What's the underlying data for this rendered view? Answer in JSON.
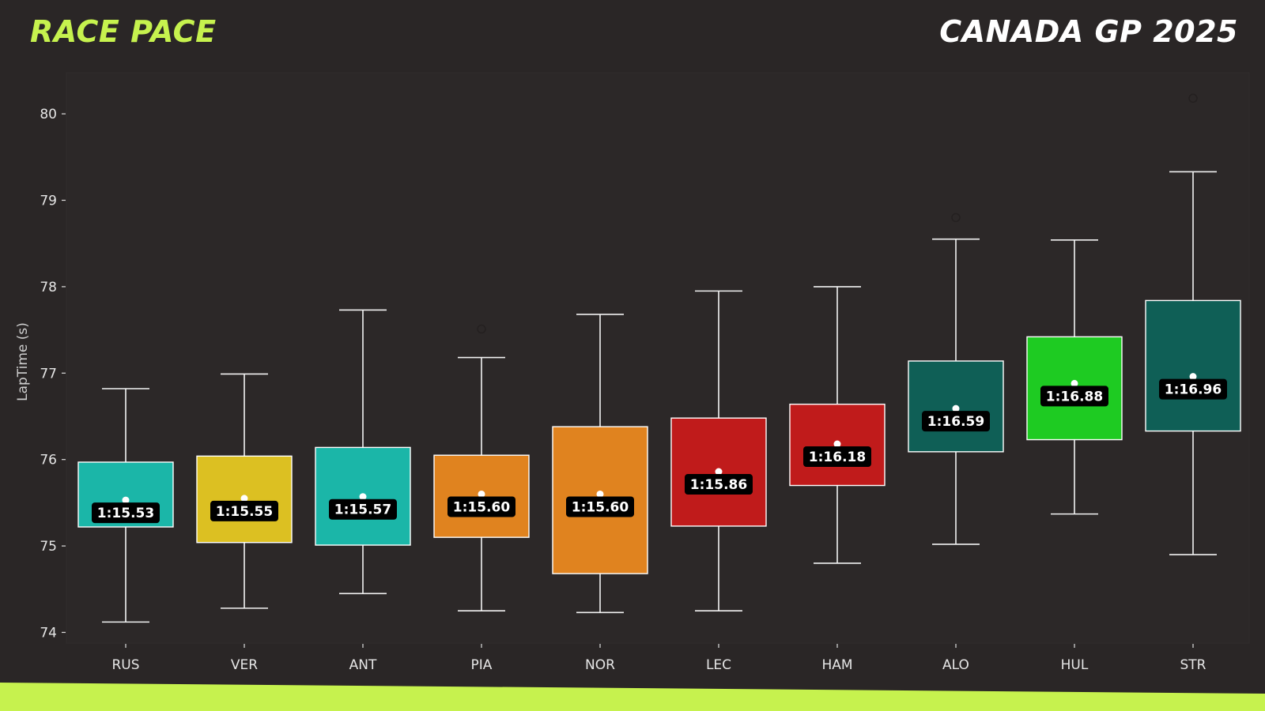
{
  "header": {
    "left_title": "RACE PACE",
    "right_title": "CANADA GP 2025"
  },
  "colors": {
    "background": "#2a2626",
    "accent": "#c6f24e",
    "whisker": "#f2f2f2",
    "label_bg": "#000000"
  },
  "chart_data": {
    "type": "box",
    "title": "",
    "xlabel": "",
    "ylabel": "LapTime (s)",
    "ylim": [
      73.9,
      80.5
    ],
    "yticks": [
      74,
      75,
      76,
      77,
      78,
      79,
      80
    ],
    "grid": false,
    "categories": [
      "RUS",
      "VER",
      "ANT",
      "PIA",
      "NOR",
      "LEC",
      "HAM",
      "ALO",
      "HUL",
      "STR"
    ],
    "boxes": [
      {
        "driver": "RUS",
        "color": "#1bb6a8",
        "whisker_low": 74.12,
        "q1": 75.22,
        "median": 75.53,
        "q3": 75.97,
        "whisker_high": 76.82,
        "label": "1:15.53",
        "outliers": []
      },
      {
        "driver": "VER",
        "color": "#dcc022",
        "whisker_low": 74.28,
        "q1": 75.04,
        "median": 75.55,
        "q3": 76.04,
        "whisker_high": 76.99,
        "label": "1:15.55",
        "outliers": []
      },
      {
        "driver": "ANT",
        "color": "#1bb6a8",
        "whisker_low": 74.45,
        "q1": 75.01,
        "median": 75.57,
        "q3": 76.14,
        "whisker_high": 77.73,
        "label": "1:15.57",
        "outliers": []
      },
      {
        "driver": "PIA",
        "color": "#e0831f",
        "whisker_low": 74.25,
        "q1": 75.1,
        "median": 75.6,
        "q3": 76.05,
        "whisker_high": 77.18,
        "label": "1:15.60",
        "outliers": [
          77.51
        ]
      },
      {
        "driver": "NOR",
        "color": "#e0831f",
        "whisker_low": 74.23,
        "q1": 74.68,
        "median": 75.6,
        "q3": 76.38,
        "whisker_high": 77.68,
        "label": "1:15.60",
        "outliers": []
      },
      {
        "driver": "LEC",
        "color": "#c01b1b",
        "whisker_low": 74.25,
        "q1": 75.23,
        "median": 75.86,
        "q3": 76.48,
        "whisker_high": 77.95,
        "label": "1:15.86",
        "outliers": []
      },
      {
        "driver": "HAM",
        "color": "#c01b1b",
        "whisker_low": 74.8,
        "q1": 75.7,
        "median": 76.18,
        "q3": 76.64,
        "whisker_high": 78.0,
        "label": "1:16.18",
        "outliers": []
      },
      {
        "driver": "ALO",
        "color": "#0f5f56",
        "whisker_low": 75.02,
        "q1": 76.09,
        "median": 76.59,
        "q3": 77.14,
        "whisker_high": 78.55,
        "label": "1:16.59",
        "outliers": [
          78.8
        ]
      },
      {
        "driver": "HUL",
        "color": "#1ecb22",
        "whisker_low": 75.37,
        "q1": 76.23,
        "median": 76.88,
        "q3": 77.42,
        "whisker_high": 78.54,
        "label": "1:16.88",
        "outliers": []
      },
      {
        "driver": "STR",
        "color": "#0f5f56",
        "whisker_low": 74.9,
        "q1": 76.33,
        "median": 76.96,
        "q3": 77.84,
        "whisker_high": 79.33,
        "label": "1:16.96",
        "outliers": [
          80.18
        ]
      }
    ]
  }
}
